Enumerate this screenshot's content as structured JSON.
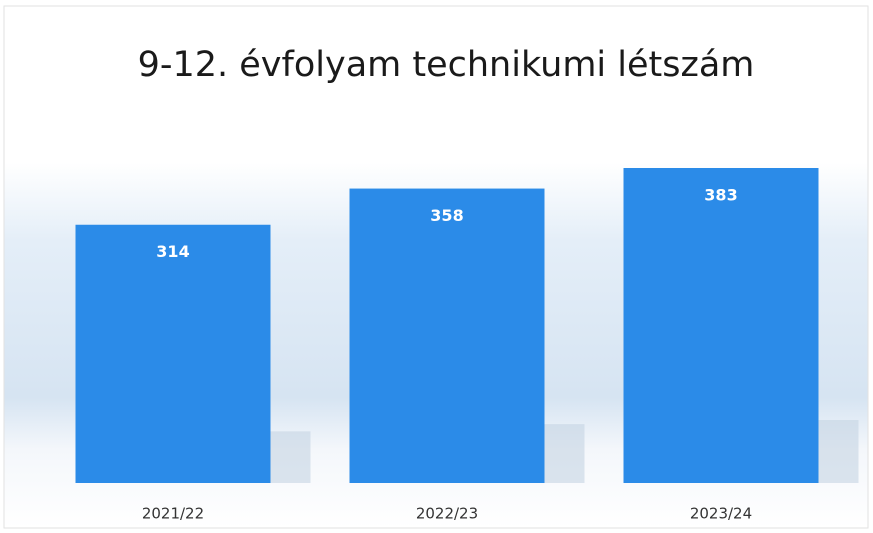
{
  "chart_data": {
    "type": "bar",
    "title": "9-12. évfolyam technikumi létszám",
    "categories": [
      "2021/22",
      "2022/23",
      "2023/24"
    ],
    "values": [
      314,
      358,
      383
    ],
    "color": "#2b8be8"
  }
}
